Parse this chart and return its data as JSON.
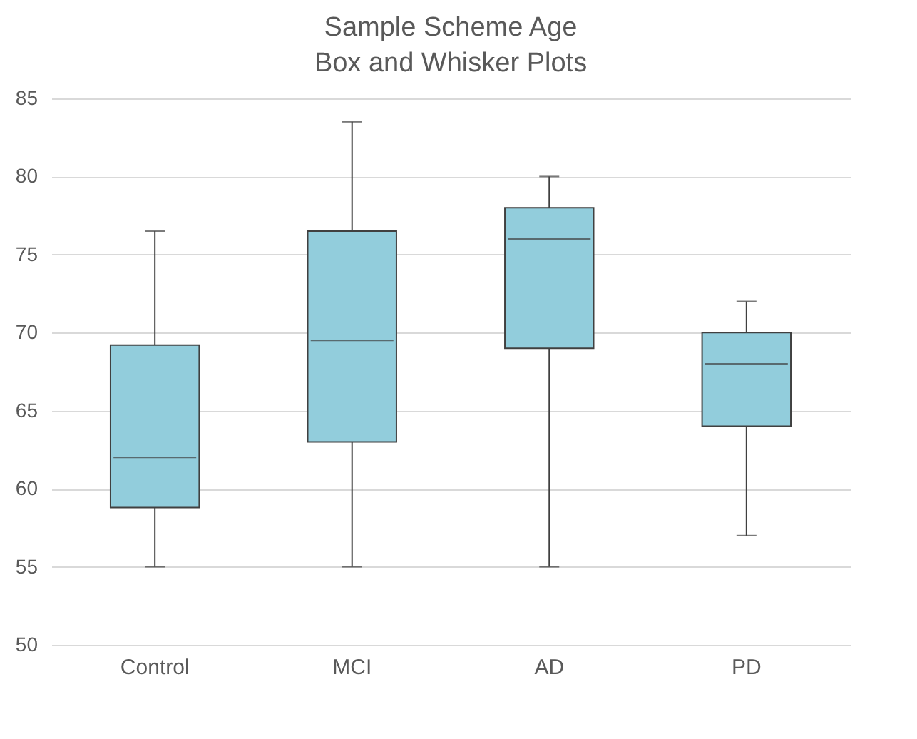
{
  "chart_data": {
    "type": "box",
    "title": "Sample Scheme Age",
    "subtitle": "Box and Whisker Plots",
    "categories": [
      "Control",
      "MCI",
      "AD",
      "PD"
    ],
    "boxes": [
      {
        "low": 55,
        "q1": 58.8,
        "median": 62,
        "q3": 69.2,
        "high": 76.5
      },
      {
        "low": 55,
        "q1": 63,
        "median": 69.5,
        "q3": 76.5,
        "high": 83.5
      },
      {
        "low": 55,
        "q1": 69,
        "median": 76,
        "q3": 78,
        "high": 80
      },
      {
        "low": 57,
        "q1": 64,
        "median": 68,
        "q3": 70,
        "high": 72
      }
    ],
    "color": "#92cddc",
    "ylim": [
      50,
      85
    ],
    "yticks": [
      50,
      55,
      60,
      65,
      70,
      75,
      80,
      85
    ],
    "grid": "y"
  }
}
